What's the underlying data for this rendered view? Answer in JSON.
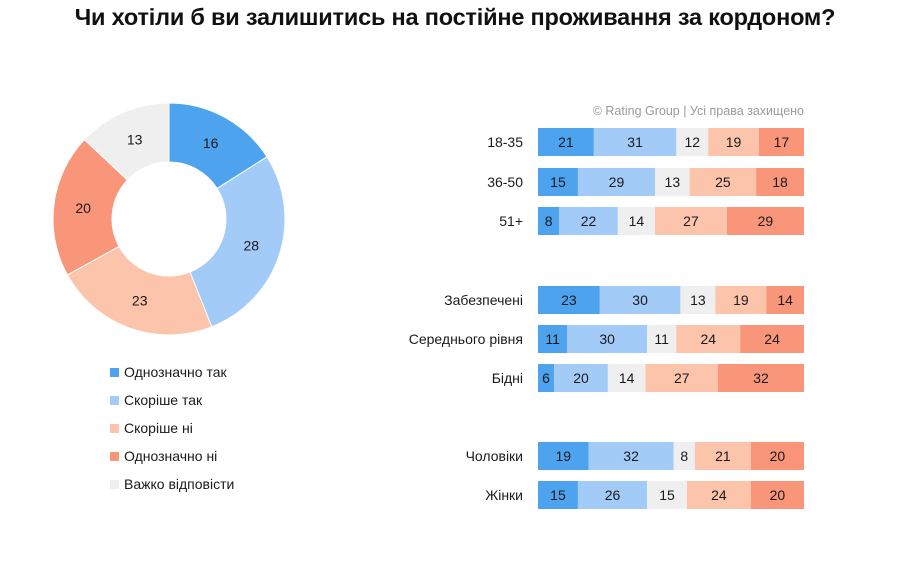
{
  "title": "Чи хотіли б ви залишитись на постійне проживання за кордоном?",
  "copyright": "© Rating Group | Усі права захищено",
  "chart_data": [
    {
      "type": "pie",
      "variant": "donut",
      "labels": [
        "Однозначно так",
        "Скоріше так",
        "Скоріше ні",
        "Однозначно ні",
        "Важко відповісти"
      ],
      "values": [
        16,
        28,
        23,
        20,
        13
      ],
      "colors": [
        "#4da3ee",
        "#a3cbf7",
        "#fbc4ab",
        "#f9967a",
        "#efefef"
      ],
      "legend": "bottom"
    },
    {
      "type": "bar",
      "orientation": "horizontal",
      "stacked": true,
      "normalized": true,
      "series_names": [
        "Однозначно так",
        "Скоріше так",
        "Важко відповісти",
        "Скоріше ні",
        "Однозначно ні"
      ],
      "series_colors": [
        "#4da3ee",
        "#a3cbf7",
        "#efefef",
        "#fbc4ab",
        "#f9967a"
      ],
      "groups": [
        {
          "rows": [
            {
              "label": "18-35",
              "values": [
                21,
                31,
                12,
                19,
                17
              ]
            },
            {
              "label": "36-50",
              "values": [
                15,
                29,
                13,
                25,
                18
              ]
            },
            {
              "label": "51+",
              "values": [
                8,
                22,
                14,
                27,
                29
              ]
            }
          ]
        },
        {
          "rows": [
            {
              "label": "Забезпечені",
              "values": [
                23,
                30,
                13,
                19,
                14
              ]
            },
            {
              "label": "Середнього рівня",
              "values": [
                11,
                30,
                11,
                24,
                24
              ]
            },
            {
              "label": "Бідні",
              "values": [
                6,
                20,
                14,
                27,
                32
              ]
            }
          ]
        },
        {
          "rows": [
            {
              "label": "Чоловіки",
              "values": [
                19,
                32,
                8,
                21,
                20
              ]
            },
            {
              "label": "Жінки",
              "values": [
                15,
                26,
                15,
                24,
                20
              ]
            }
          ]
        }
      ]
    }
  ]
}
